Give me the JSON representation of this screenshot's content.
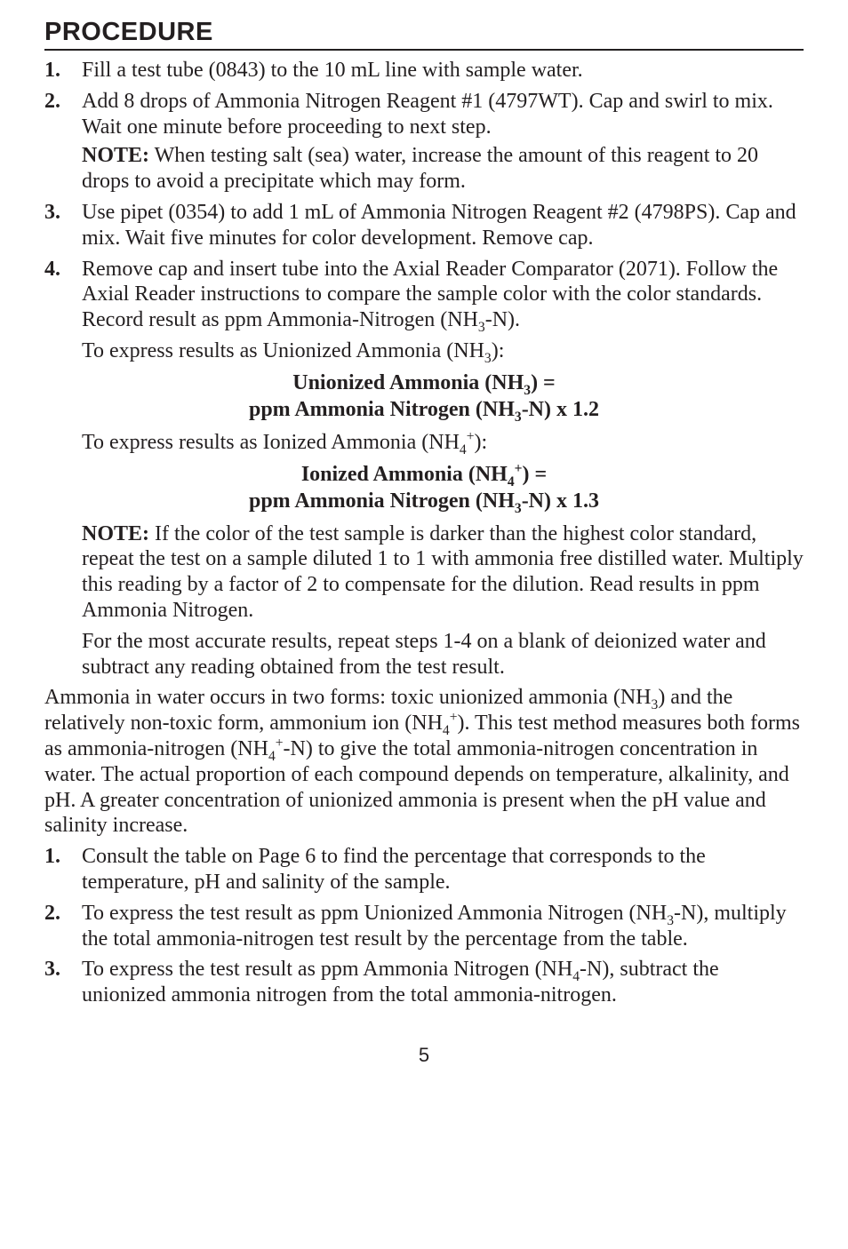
{
  "heading": "PROCEDURE",
  "steps": [
    {
      "text": "Fill a test tube (0843) to the 10 mL line with sample water."
    },
    {
      "text": "Add 8 drops of Ammonia Nitrogen Reagent #1 (4797WT). Cap and swirl to mix. Wait one minute before proceeding to next step.",
      "note_label": "NOTE:",
      "note_text": " When testing salt (sea) water, increase the amount of this reagent to 20 drops to avoid a precipitate which may form."
    },
    {
      "text": "Use pipet (0354) to add 1 mL of Ammonia Nitrogen Reagent #2 (4798PS). Cap and mix. Wait five minutes for color development. Remove cap."
    },
    {
      "text_html": "Remove cap and insert tube into the Axial Reader Comparator (2071). Follow the Axial Reader instructions to compare the sample color with the color standards. Record result as ppm Ammonia-Nitrogen (NH<sub>3</sub>-N)."
    }
  ],
  "express_unionized_intro_html": "To express results as Unionized Ammonia (NH<sub>3</sub>):",
  "formula_unionized_line1_html": "Unionized Ammonia (NH<sub>3</sub>) =",
  "formula_unionized_line2_html": "ppm Ammonia Nitrogen (NH<sub>3</sub>-N) x 1.2",
  "express_ionized_intro_html": "To express results as Ionized Ammonia (NH<sub>4</sub><sup>+</sup>):",
  "formula_ionized_line1_html": "Ionized Ammonia (NH<sub>4</sub><sup>+</sup>) =",
  "formula_ionized_line2_html": "ppm Ammonia Nitrogen (NH<sub>3</sub>-N) x 1.3",
  "note2_label": "NOTE:",
  "note2_text": " If the color of the test sample is darker than the highest color standard, repeat the test on a sample diluted 1 to 1 with ammonia free distilled water. Multiply this reading by  a factor of 2 to compensate for the dilution. Read results in ppm Ammonia Nitrogen.",
  "accurate_text": "For the most accurate results, repeat steps 1-4 on a blank of deionized water and subtract any reading obtained from the test result.",
  "ammonia_para_html": "Ammonia in water occurs in two forms: toxic unionized ammonia (NH<sub>3</sub>) and the relatively non-toxic form, ammonium ion (NH<sub>4</sub><sup>+</sup>). This test method measures both forms as ammonia-nitrogen (NH<sub>4</sub><sup>+</sup>-N) to give the total ammonia-nitrogen concentration in water. The actual proportion of each compound depends on temperature, alkalinity, and pH. A greater concentration of unionized ammonia is present when the pH value and salinity increase.",
  "steps2": [
    {
      "text": "Consult the table on Page 6 to find the percentage that corresponds to the temperature, pH and salinity of the sample."
    },
    {
      "text_html": "To express the test result as ppm Unionized Ammonia Nitrogen (NH<sub>3</sub>-N), multiply the total ammonia-nitrogen test result by the percentage from the table."
    },
    {
      "text_html": "To express the test result as ppm Ammonia Nitrogen (NH<sub>4</sub>-N), subtract the unionized ammonia nitrogen from the total ammonia-nitrogen."
    }
  ],
  "page_number": "5"
}
